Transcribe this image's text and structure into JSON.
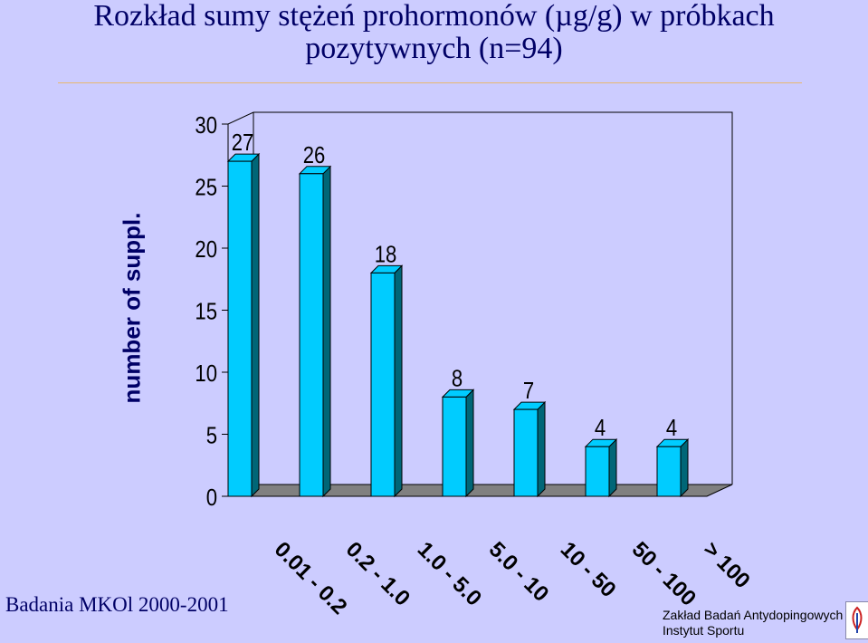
{
  "chart_data": {
    "type": "bar",
    "title": "Rozkład sumy stężeń prohormonów (µg/g) w próbkach pozytywnych (n=94)",
    "title_lines": [
      "Rozkład sumy stężeń prohormonów (µg/g) w próbkach",
      "pozytywnych (n=94)"
    ],
    "ylabel": "number of suppl.",
    "xlabel": "",
    "categories": [
      "0.01 - 0.2",
      "0.2 - 1.0",
      "1.0 - 5.0",
      "5.0 - 10",
      "10 - 50",
      "50 - 100",
      "> 100"
    ],
    "values": [
      27,
      26,
      18,
      8,
      7,
      4,
      4
    ],
    "data_labels": [
      "27",
      "26",
      "18",
      "8",
      "7",
      "4",
      "4"
    ],
    "yticks": [
      "0",
      "5",
      "10",
      "15",
      "20",
      "25",
      "30"
    ],
    "ylim": [
      0,
      30
    ],
    "grid": false,
    "legend": "none",
    "bar_color": "#00ccff",
    "bar_side_color": "#006677"
  },
  "footer": {
    "left": "Badania MKOl 2000-2001",
    "right_line1": "Zakład Badań Antydopingowych",
    "right_line2": "Instytut Sportu"
  },
  "logo": {
    "icon": "institute-logo-icon"
  },
  "colors": {
    "background": "#ccccff",
    "title": "#000066"
  }
}
